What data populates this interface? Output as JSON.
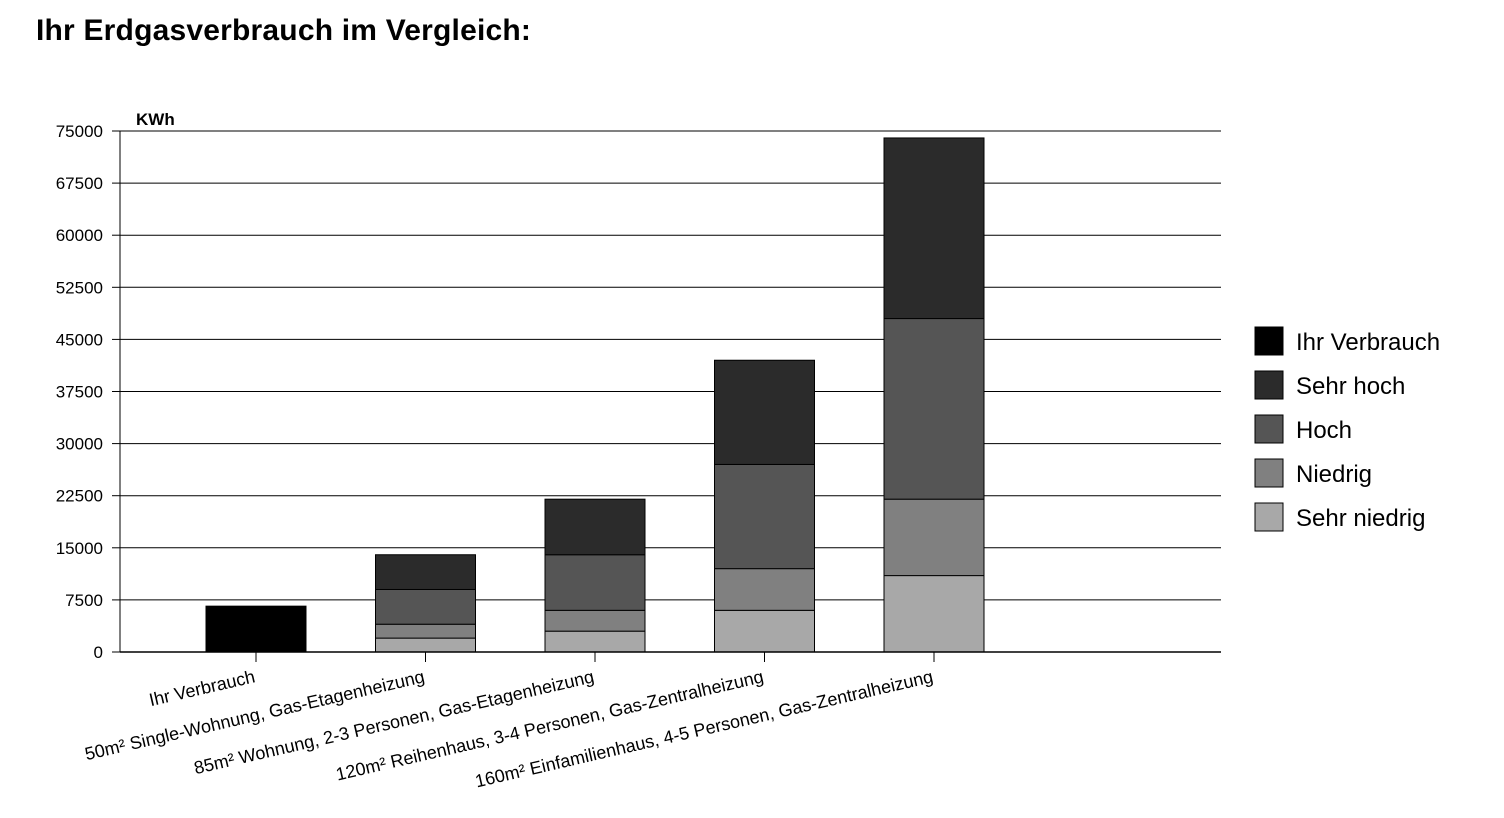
{
  "title": "Ihr Erdgasverbrauch im Vergleich:",
  "chart_data": {
    "type": "bar",
    "stacked": true,
    "ylabel": "KWh",
    "ylim": [
      0,
      75000
    ],
    "yticks": [
      0,
      7500,
      15000,
      22500,
      30000,
      37500,
      45000,
      52500,
      60000,
      67500,
      75000
    ],
    "grid": true,
    "legend_position": "right",
    "categories": [
      "Ihr Verbrauch",
      "50m² Single-Wohnung, Gas-Etagenheizung",
      "85m² Wohnung, 2-3 Personen, Gas-Etagenheizung",
      "120m² Reihenhaus, 3-4 Personen, Gas-Zentralheizung",
      "160m² Einfamilienhaus, 4-5 Personen, Gas-Zentralheizung"
    ],
    "series": [
      {
        "name": "Ihr Verbrauch",
        "color": "#000000",
        "values": [
          6600,
          0,
          0,
          0,
          0
        ]
      },
      {
        "name": "Sehr niedrig",
        "color": "#a8a8a8",
        "values": [
          0,
          2000,
          3000,
          6000,
          11000
        ]
      },
      {
        "name": "Niedrig",
        "color": "#808080",
        "values": [
          0,
          2000,
          3000,
          6000,
          11000
        ]
      },
      {
        "name": "Hoch",
        "color": "#555555",
        "values": [
          0,
          5000,
          8000,
          15000,
          26000
        ]
      },
      {
        "name": "Sehr hoch",
        "color": "#2b2b2b",
        "values": [
          0,
          5000,
          8000,
          15000,
          26000
        ]
      }
    ],
    "legend": [
      "Ihr Verbrauch",
      "Sehr hoch",
      "Hoch",
      "Niedrig",
      "Sehr niedrig"
    ]
  }
}
